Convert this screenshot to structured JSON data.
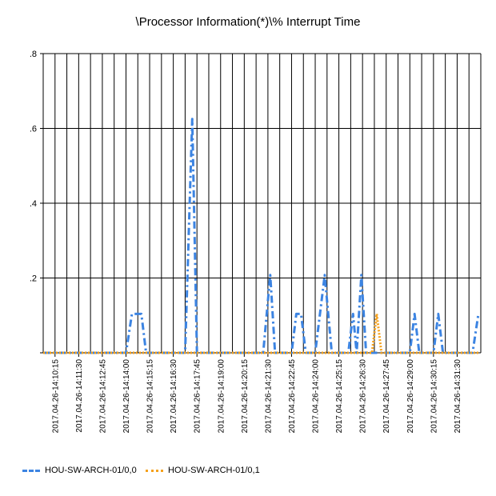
{
  "chart_data": {
    "type": "line",
    "title": "\\Processor Information(*)\\% Interrupt Time",
    "xlabel": "",
    "ylabel": "",
    "ylim": [
      0,
      0.8
    ],
    "yticks": [
      {
        "value": 0,
        "label": ""
      },
      {
        "value": 0.2,
        "label": ".2"
      },
      {
        "value": 0.4,
        "label": ".4"
      },
      {
        "value": 0.6,
        "label": ".6"
      },
      {
        "value": 0.8,
        "label": ".8"
      }
    ],
    "xrange": [
      0,
      37
    ],
    "x_tick_labels": [
      "2017.04.26-14:10:15",
      "2017.04.26-14:11:30",
      "2017.04.26-14:12:45",
      "2017.04.26-14:14:00",
      "2017.04.26-14:15:15",
      "2017.04.26-14:16:30",
      "2017.04.26-14:17:45",
      "2017.04.26-14:19:00",
      "2017.04.26-14:20:15",
      "2017.04.26-14:21:30",
      "2017.04.26-14:22:45",
      "2017.04.26-14:24:00",
      "2017.04.26-14:25:15",
      "2017.04.26-14:26:30",
      "2017.04.26-14:27:45",
      "2017.04.26-14:29:00",
      "2017.04.26-14:30:15",
      "2017.04.26-14:31:30"
    ],
    "grid": true,
    "legend_position": "bottom-left",
    "series": [
      {
        "name": "HOU-SW-ARCH-01/0,0",
        "color": "#3c84e2",
        "style": "dash-dot",
        "points": [
          [
            0,
            0
          ],
          [
            7,
            0
          ],
          [
            7.5,
            0.104
          ],
          [
            8.3,
            0.104
          ],
          [
            8.7,
            0
          ],
          [
            12,
            0
          ],
          [
            12.6,
            0.625
          ],
          [
            13,
            0
          ],
          [
            18.6,
            0
          ],
          [
            19.2,
            0.208
          ],
          [
            19.6,
            0
          ],
          [
            21,
            0
          ],
          [
            21.4,
            0.104
          ],
          [
            21.8,
            0.104
          ],
          [
            22.2,
            0
          ],
          [
            23,
            0
          ],
          [
            23.8,
            0.208
          ],
          [
            24.4,
            0
          ],
          [
            25.8,
            0
          ],
          [
            26.2,
            0.104
          ],
          [
            26.5,
            0
          ],
          [
            26.9,
            0.208
          ],
          [
            27.3,
            0
          ],
          [
            31,
            0
          ],
          [
            31.4,
            0.104
          ],
          [
            31.8,
            0
          ],
          [
            33,
            0
          ],
          [
            33.4,
            0.104
          ],
          [
            33.8,
            0
          ],
          [
            36.3,
            0
          ],
          [
            36.8,
            0.104
          ]
        ]
      },
      {
        "name": "HOU-SW-ARCH-01/0,1",
        "color": "#f5a11c",
        "style": "dotted",
        "points": [
          [
            0,
            0
          ],
          [
            27.8,
            0
          ],
          [
            28.2,
            0.104
          ],
          [
            28.6,
            0
          ],
          [
            36.8,
            0
          ]
        ]
      }
    ]
  }
}
